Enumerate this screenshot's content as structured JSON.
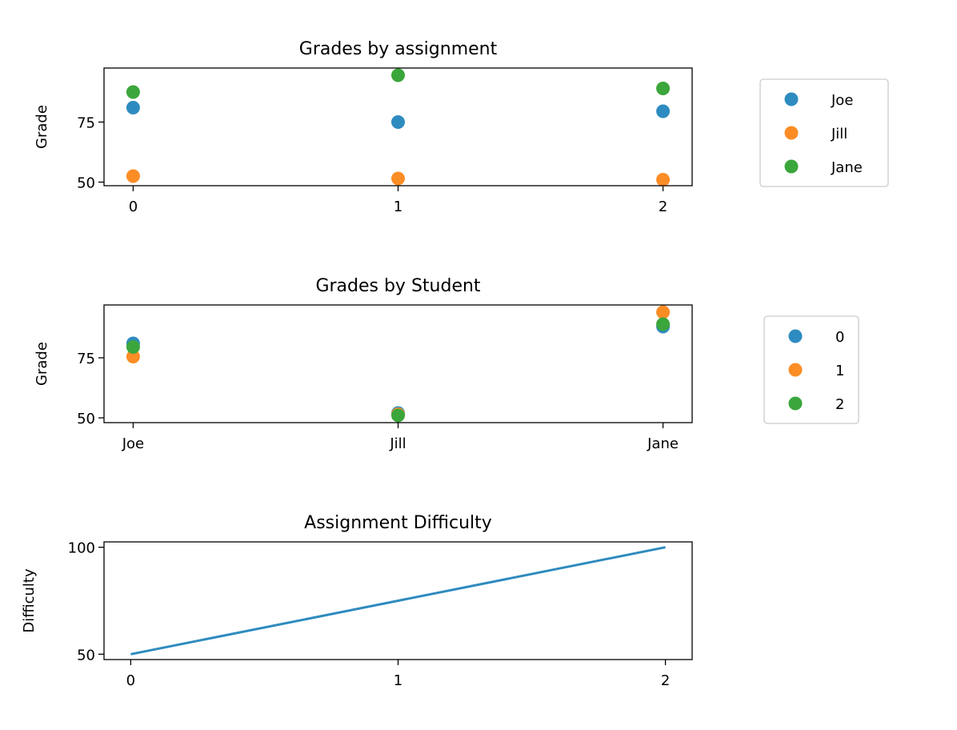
{
  "colors": {
    "c0": "#2e8bc0",
    "c1": "#fc8d25",
    "c2": "#3ba63b"
  },
  "chart_data": [
    {
      "type": "scatter",
      "title": "Grades by assignment",
      "xlabel": "",
      "ylabel": "Grade",
      "xlim": [
        -0.11,
        2.11
      ],
      "ylim": [
        48.5,
        97.5
      ],
      "xticks": [
        0,
        1,
        2
      ],
      "xtick_labels": [
        "0",
        "1",
        "2"
      ],
      "yticks": [
        50,
        75
      ],
      "ytick_labels": [
        "50",
        "75"
      ],
      "legend_placement": "outside-right",
      "series": [
        {
          "name": "Joe",
          "x": [
            0,
            1,
            2
          ],
          "y": [
            81,
            75,
            79.5
          ]
        },
        {
          "name": "Jill",
          "x": [
            0,
            1,
            2
          ],
          "y": [
            52.5,
            51.5,
            51
          ]
        },
        {
          "name": "Jane",
          "x": [
            0,
            1,
            2
          ],
          "y": [
            87.5,
            94.5,
            89
          ]
        }
      ]
    },
    {
      "type": "scatter",
      "title": "Grades by Student",
      "xlabel": "",
      "ylabel": "Grade",
      "xlim": [
        -0.11,
        2.11
      ],
      "ylim": [
        48,
        97
      ],
      "xticks": [
        0,
        1,
        2
      ],
      "xtick_labels": [
        "Joe",
        "Jill",
        "Jane"
      ],
      "yticks": [
        50,
        75
      ],
      "ytick_labels": [
        "50",
        "75"
      ],
      "legend_placement": "outside-right",
      "series": [
        {
          "name": "0",
          "x": [
            0,
            1,
            2
          ],
          "y": [
            81,
            52,
            88
          ]
        },
        {
          "name": "1",
          "x": [
            0,
            1,
            2
          ],
          "y": [
            75.5,
            51.5,
            94
          ]
        },
        {
          "name": "2",
          "x": [
            0,
            1,
            2
          ],
          "y": [
            79.5,
            51,
            89
          ]
        }
      ]
    },
    {
      "type": "line",
      "title": "Assignment Difficulty",
      "xlabel": "",
      "ylabel": "Difficulty",
      "xlim": [
        -0.1,
        2.1
      ],
      "ylim": [
        47.5,
        102.5
      ],
      "xticks": [
        0,
        1,
        2
      ],
      "xtick_labels": [
        "0",
        "1",
        "2"
      ],
      "yticks": [
        50,
        100
      ],
      "ytick_labels": [
        "50",
        "100"
      ],
      "series": [
        {
          "x": [
            0,
            1,
            2
          ],
          "y": [
            50,
            75,
            100
          ]
        }
      ]
    }
  ]
}
